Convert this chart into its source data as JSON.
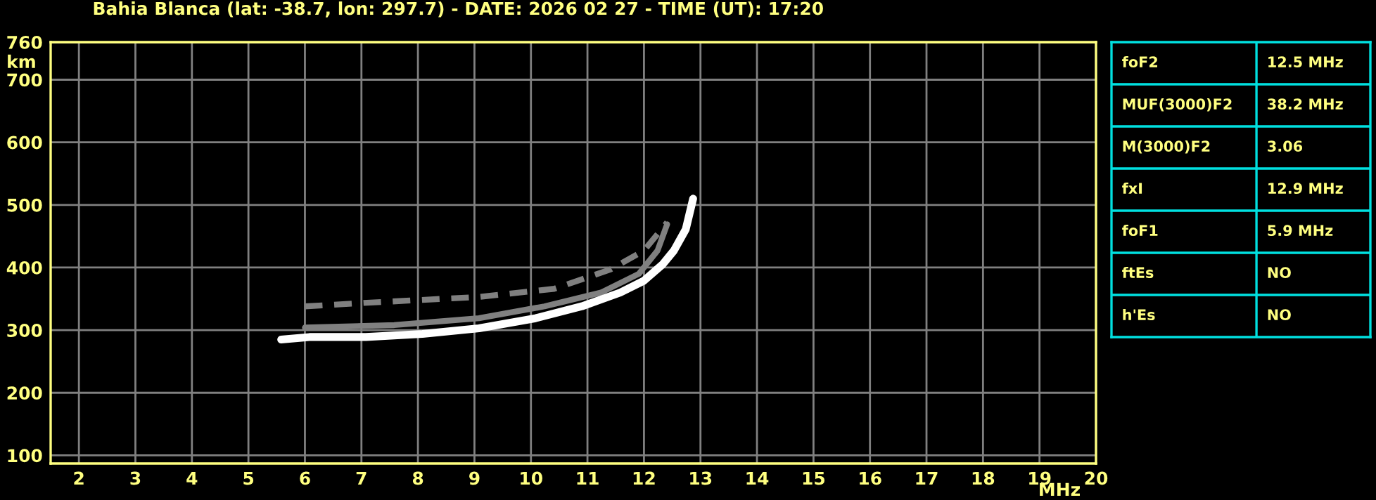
{
  "chart_data": [
    {
      "type": "line",
      "title": "Bahia Blanca (lat: -38.7, lon: 297.7) - DATE: 2026 02 27 - TIME (UT): 17:20",
      "xlabel": "MHz",
      "ylabel": "km",
      "series": [
        {
          "color": "#808080",
          "line_style": "dashed",
          "x": [
            6.0,
            7.16,
            9.08,
            10.41,
            11.41,
            12.0,
            12.41
          ],
          "values": [
            338,
            344,
            353,
            366,
            397,
            427,
            472
          ]
        },
        {
          "color": "#808080",
          "line_style": "solid",
          "x": [
            6.0,
            7.58,
            9.08,
            10.24,
            11.24,
            11.91,
            12.24,
            12.41
          ],
          "values": [
            304,
            308,
            319,
            338,
            360,
            390,
            427,
            469
          ]
        },
        {
          "color": "#ffffff",
          "line_style": "solid",
          "x": [
            5.58,
            6.08,
            7.08,
            8.08,
            9.08,
            10.08,
            10.9,
            11.58,
            12.0,
            12.33,
            12.53,
            12.74,
            12.87
          ],
          "values": [
            285,
            289,
            289,
            294,
            303,
            319,
            338,
            360,
            379,
            405,
            427,
            461,
            510
          ]
        }
      ],
      "xlim": [
        1.5,
        20
      ],
      "ylim": [
        87,
        760
      ],
      "xticks": [
        2,
        3,
        4,
        5,
        6,
        7,
        8,
        9,
        10,
        11,
        12,
        13,
        14,
        15,
        16,
        17,
        18,
        19,
        20
      ],
      "yticks": [
        100,
        200,
        300,
        400,
        500,
        600,
        700,
        760
      ],
      "grid": true,
      "legend": false,
      "marker": "none"
    },
    {
      "type": "other",
      "annotations": [
        "foF2",
        "12.5 MHz",
        "MUF(3000)F2",
        "38.2 MHz",
        "M(3000)F2",
        "3.06",
        "fxI",
        "12.9 MHz",
        "foF1",
        "5.9 MHz",
        "ftEs",
        "NO",
        "h'Es",
        "NO"
      ]
    }
  ]
}
